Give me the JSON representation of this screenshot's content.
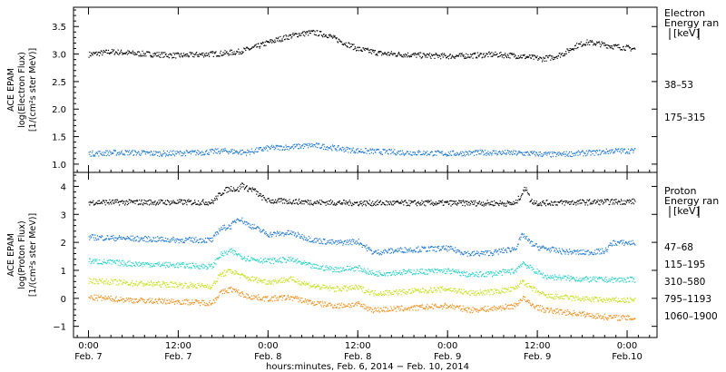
{
  "chart_data": [
    {
      "type": "scatter",
      "ylabel": [
        "ACE EPAM",
        "log(Electron Flux)",
        "[1/(cm²s ster MeV)]"
      ],
      "ylim": [
        0.85,
        3.85
      ],
      "yticks": [
        "1.0",
        "1.5",
        "2.0",
        "2.5",
        "3.0",
        "3.5"
      ],
      "legend_title": [
        "Electron",
        "Energy ran",
        "[keV]"
      ],
      "series": [
        {
          "name": "38–53",
          "color": "#000000",
          "x": [
            0,
            6,
            12,
            18,
            24,
            30,
            36,
            40,
            44,
            48,
            52,
            56,
            60,
            64,
            66,
            68,
            72,
            78,
            84,
            90,
            96,
            102,
            108,
            114,
            118,
            121,
            124,
            127,
            130,
            133,
            136,
            140,
            144,
            146
          ],
          "y": [
            3.0,
            3.05,
            3.02,
            3.0,
            2.98,
            3.0,
            3.02,
            3.05,
            3.12,
            3.22,
            3.3,
            3.37,
            3.4,
            3.35,
            3.28,
            3.22,
            3.1,
            3.02,
            3.0,
            2.98,
            2.97,
            2.98,
            3.0,
            2.98,
            2.95,
            2.92,
            2.95,
            3.02,
            3.15,
            3.22,
            3.2,
            3.15,
            3.12,
            3.1
          ]
        },
        {
          "name": "175–315",
          "color": "#1f78d2",
          "x": [
            0,
            10,
            20,
            30,
            36,
            42,
            48,
            54,
            60,
            66,
            72,
            84,
            96,
            108,
            118,
            124,
            130,
            136,
            140,
            146
          ],
          "y": [
            1.2,
            1.22,
            1.2,
            1.22,
            1.25,
            1.22,
            1.3,
            1.32,
            1.35,
            1.3,
            1.25,
            1.22,
            1.2,
            1.22,
            1.2,
            1.18,
            1.2,
            1.22,
            1.25,
            1.25
          ]
        }
      ]
    },
    {
      "type": "scatter",
      "ylabel": [
        "ACE EPAM",
        "log(Proton Flux)",
        "[1/(cm²s ster MeV)]"
      ],
      "ylim": [
        -1.4,
        4.5
      ],
      "yticks": [
        "−1",
        "0",
        "1",
        "2",
        "3",
        "4"
      ],
      "legend_title": [
        "Proton",
        "Energy ran",
        "[keV]"
      ],
      "series": [
        {
          "name": "47–68",
          "color": "#000000",
          "x": [
            0,
            12,
            24,
            33,
            34,
            36,
            38,
            40,
            41,
            42,
            44,
            46,
            48,
            54,
            60,
            72,
            84,
            96,
            108,
            114,
            116,
            117,
            118,
            120,
            132,
            146
          ],
          "y": [
            3.45,
            3.45,
            3.45,
            3.45,
            3.6,
            3.85,
            3.95,
            3.9,
            4.1,
            3.95,
            3.9,
            3.65,
            3.5,
            3.48,
            3.45,
            3.42,
            3.42,
            3.42,
            3.42,
            3.4,
            3.8,
            4.0,
            3.5,
            3.42,
            3.45,
            3.48
          ]
        },
        {
          "name": "115–195",
          "color": "#1f78d2",
          "x": [
            0,
            12,
            24,
            33,
            35,
            38,
            40,
            42,
            45,
            48,
            54,
            60,
            66,
            72,
            76,
            84,
            96,
            102,
            108,
            114,
            116,
            118,
            120,
            126,
            132,
            138,
            140,
            146
          ],
          "y": [
            2.2,
            2.15,
            2.1,
            2.1,
            2.5,
            2.6,
            2.9,
            2.7,
            2.5,
            2.3,
            2.35,
            2.1,
            2.0,
            2.05,
            1.65,
            1.75,
            1.8,
            1.6,
            1.65,
            1.8,
            2.3,
            2.0,
            1.85,
            1.7,
            1.65,
            1.7,
            2.0,
            2.0
          ]
        },
        {
          "name": "310–580",
          "color": "#27d2c8",
          "x": [
            0,
            12,
            24,
            33,
            35,
            38,
            42,
            48,
            54,
            60,
            66,
            72,
            76,
            84,
            96,
            102,
            108,
            114,
            116,
            118,
            122,
            132,
            138,
            146
          ],
          "y": [
            1.35,
            1.25,
            1.2,
            1.15,
            1.55,
            1.7,
            1.45,
            1.35,
            1.4,
            1.15,
            1.05,
            1.1,
            0.9,
            0.95,
            1.0,
            0.85,
            0.9,
            1.0,
            1.3,
            1.1,
            0.8,
            0.7,
            0.68,
            0.68
          ]
        },
        {
          "name": "795–1193",
          "color": "#c4e21a",
          "x": [
            0,
            12,
            24,
            33,
            35,
            38,
            42,
            48,
            54,
            60,
            66,
            72,
            76,
            84,
            96,
            102,
            108,
            114,
            116,
            118,
            122,
            132,
            138,
            146
          ],
          "y": [
            0.65,
            0.55,
            0.5,
            0.45,
            0.85,
            1.0,
            0.75,
            0.6,
            0.7,
            0.45,
            0.35,
            0.4,
            0.2,
            0.25,
            0.35,
            0.2,
            0.25,
            0.35,
            0.65,
            0.4,
            0.1,
            0.0,
            -0.05,
            -0.05
          ]
        },
        {
          "name": "1060–1900",
          "color": "#f0901c",
          "x": [
            0,
            12,
            24,
            33,
            35,
            38,
            42,
            48,
            54,
            60,
            66,
            72,
            76,
            84,
            96,
            102,
            108,
            114,
            116,
            118,
            122,
            132,
            138,
            146
          ],
          "y": [
            0.05,
            -0.05,
            -0.1,
            -0.15,
            0.2,
            0.35,
            0.1,
            0.0,
            0.05,
            -0.15,
            -0.25,
            -0.2,
            -0.4,
            -0.35,
            -0.25,
            -0.4,
            -0.35,
            -0.25,
            0.05,
            -0.2,
            -0.4,
            -0.55,
            -0.65,
            -0.7
          ]
        }
      ]
    }
  ],
  "x_axis": {
    "range_hours": [
      -4,
      152
    ],
    "ticks": [
      {
        "x": 0,
        "time": "0:00",
        "date": "Feb. 7"
      },
      {
        "x": 24,
        "time": "12:00",
        "date": "Feb. 7"
      },
      {
        "x": 48,
        "time": "0:00",
        "date": "Feb. 8"
      },
      {
        "x": 72,
        "time": "12:00",
        "date": "Feb. 8"
      },
      {
        "x": 96,
        "time": "0:00",
        "date": "Feb. 9"
      },
      {
        "x": 120,
        "time": "12:00",
        "date": "Feb. 9"
      },
      {
        "x": 144,
        "time": "0:00",
        "date": "Feb.10"
      }
    ],
    "label": "hours:minutes, Feb.  6, 2014 − Feb. 10, 2014"
  }
}
